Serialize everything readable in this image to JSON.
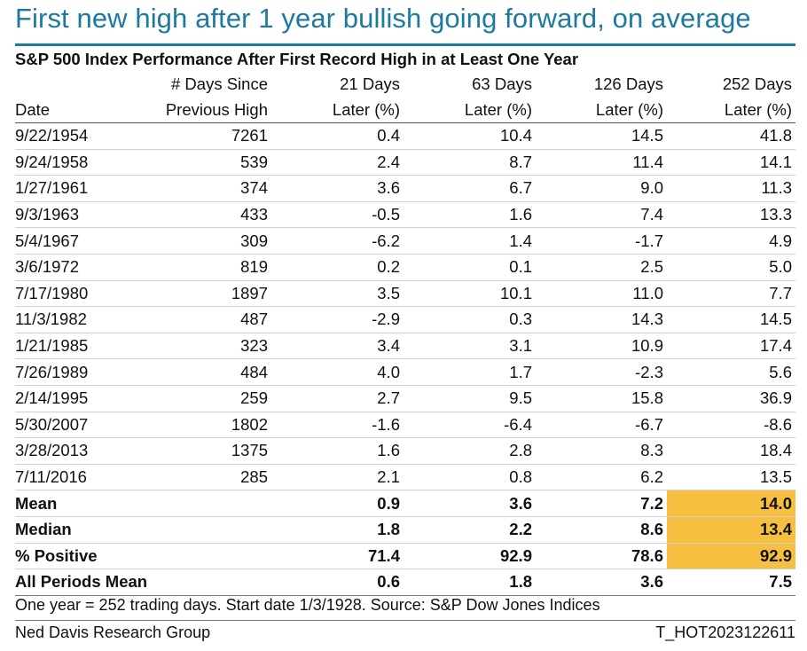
{
  "headline": "First new high after 1 year bullish going forward, on average",
  "subtitle": "S&P 500 Index Performance After First Record High in at Least One Year",
  "chart_data": {
    "type": "table",
    "columns": [
      {
        "line1": "",
        "line2": "Date"
      },
      {
        "line1": "# Days Since",
        "line2": "Previous High"
      },
      {
        "line1": "21 Days",
        "line2": "Later (%)"
      },
      {
        "line1": "63 Days",
        "line2": "Later (%)"
      },
      {
        "line1": "126 Days",
        "line2": "Later (%)"
      },
      {
        "line1": "252 Days",
        "line2": "Later (%)"
      }
    ],
    "rows": [
      [
        "9/22/1954",
        "7261",
        "0.4",
        "10.4",
        "14.5",
        "41.8"
      ],
      [
        "9/24/1958",
        "539",
        "2.4",
        "8.7",
        "11.4",
        "14.1"
      ],
      [
        "1/27/1961",
        "374",
        "3.6",
        "6.7",
        "9.0",
        "11.3"
      ],
      [
        "9/3/1963",
        "433",
        "-0.5",
        "1.6",
        "7.4",
        "13.3"
      ],
      [
        "5/4/1967",
        "309",
        "-6.2",
        "1.4",
        "-1.7",
        "4.9"
      ],
      [
        "3/6/1972",
        "819",
        "0.2",
        "0.1",
        "2.5",
        "5.0"
      ],
      [
        "7/17/1980",
        "1897",
        "3.5",
        "10.1",
        "11.0",
        "7.7"
      ],
      [
        "11/3/1982",
        "487",
        "-2.9",
        "0.3",
        "14.3",
        "14.5"
      ],
      [
        "1/21/1985",
        "323",
        "3.4",
        "3.1",
        "10.9",
        "17.4"
      ],
      [
        "7/26/1989",
        "484",
        "4.0",
        "1.7",
        "-2.3",
        "5.6"
      ],
      [
        "2/14/1995",
        "259",
        "2.7",
        "9.5",
        "15.8",
        "36.9"
      ],
      [
        "5/30/2007",
        "1802",
        "-1.6",
        "-6.4",
        "-6.7",
        "-8.6"
      ],
      [
        "3/28/2013",
        "1375",
        "1.6",
        "2.8",
        "8.3",
        "18.4"
      ],
      [
        "7/11/2016",
        "285",
        "2.1",
        "0.8",
        "6.2",
        "13.5"
      ]
    ],
    "summary_rows": [
      {
        "label": "Mean",
        "values": [
          "0.9",
          "3.6",
          "7.2",
          "14.0"
        ],
        "highlight_last": true
      },
      {
        "label": "Median",
        "values": [
          "1.8",
          "2.2",
          "8.6",
          "13.4"
        ],
        "highlight_last": true
      },
      {
        "label": "% Positive",
        "values": [
          "71.4",
          "92.9",
          "78.6",
          "92.9"
        ],
        "highlight_last": true
      },
      {
        "label": "All Periods Mean",
        "values": [
          "0.6",
          "1.8",
          "3.6",
          "7.5"
        ],
        "highlight_last": false
      }
    ],
    "highlight_color": "#f6bf3f"
  },
  "footnote": "One year = 252 trading days. Start date 1/3/1928. Source: S&P Dow Jones Indices",
  "source_left": "Ned Davis Research Group",
  "source_right": "T_HOT2023122611",
  "colors": {
    "headline": "#1c7aa0",
    "rule": "#1c7aa0",
    "highlight": "#f6bf3f"
  }
}
